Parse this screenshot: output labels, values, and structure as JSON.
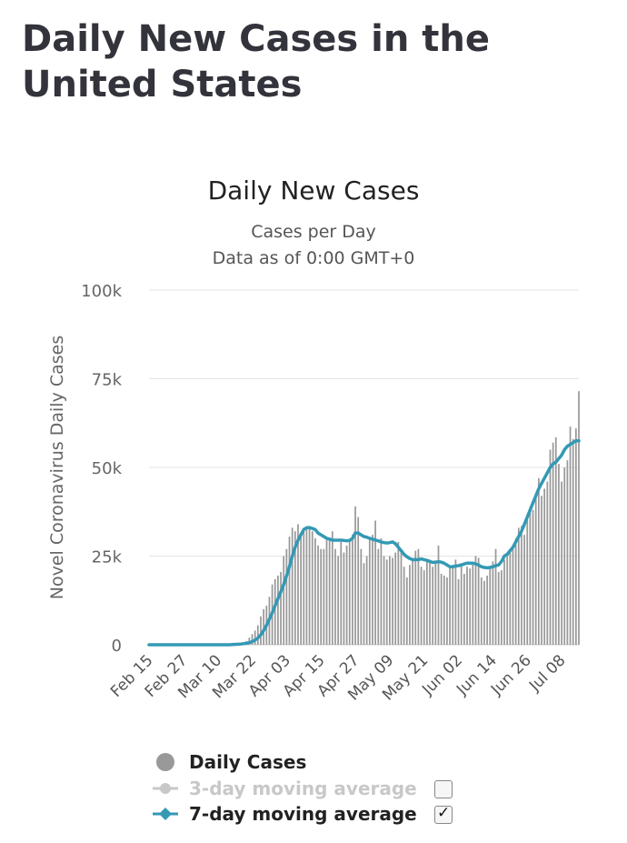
{
  "page": {
    "title": "Daily New Cases in the United States"
  },
  "chart_data": {
    "type": "bar",
    "title": "Daily New Cases",
    "subtitle": "Cases per Day",
    "note": "Data as of 0:00 GMT+0",
    "ylabel": "Novel Coronavirus Daily Cases",
    "xlabel": "",
    "ylim": [
      0,
      100000
    ],
    "y_ticks": [
      {
        "value": 0,
        "label": "0"
      },
      {
        "value": 25000,
        "label": "25k"
      },
      {
        "value": 50000,
        "label": "50k"
      },
      {
        "value": 75000,
        "label": "75k"
      },
      {
        "value": 100000,
        "label": "100k"
      }
    ],
    "x_ticks": [
      {
        "index": 0,
        "label": "Feb 15"
      },
      {
        "index": 12,
        "label": "Feb 27"
      },
      {
        "index": 24,
        "label": "Mar 10"
      },
      {
        "index": 36,
        "label": "Mar 22"
      },
      {
        "index": 48,
        "label": "Apr 03"
      },
      {
        "index": 60,
        "label": "Apr 15"
      },
      {
        "index": 72,
        "label": "Apr 27"
      },
      {
        "index": 84,
        "label": "May 09"
      },
      {
        "index": 96,
        "label": "May 21"
      },
      {
        "index": 108,
        "label": "Jun 02"
      },
      {
        "index": 120,
        "label": "Jun 14"
      },
      {
        "index": 132,
        "label": "Jun 26"
      },
      {
        "index": 144,
        "label": "Jul 08"
      }
    ],
    "grid": true,
    "legend_position": "bottom",
    "series": [
      {
        "name": "Daily Cases",
        "type": "bar",
        "color": "#999999",
        "visible": true,
        "values": [
          0,
          0,
          0,
          0,
          0,
          0,
          0,
          0,
          0,
          0,
          0,
          0,
          0,
          0,
          0,
          0,
          0,
          0,
          0,
          0,
          0,
          0,
          0,
          0,
          0,
          50,
          60,
          100,
          150,
          200,
          300,
          400,
          500,
          700,
          1000,
          2000,
          3000,
          4000,
          5500,
          8000,
          10000,
          11000,
          13500,
          17000,
          18500,
          19500,
          20500,
          25000,
          27000,
          30500,
          33000,
          32000,
          34000,
          31000,
          33000,
          32500,
          33500,
          32000,
          30000,
          28000,
          27000,
          27000,
          29500,
          30000,
          32000,
          27000,
          25000,
          29000,
          26000,
          28000,
          29000,
          31000,
          39000,
          36000,
          27000,
          23000,
          25000,
          30000,
          31000,
          35000,
          27000,
          30000,
          25000,
          24000,
          25000,
          24500,
          26000,
          29000,
          26000,
          22000,
          19000,
          22500,
          24000,
          26500,
          27000,
          22000,
          21000,
          23500,
          24000,
          22000,
          23000,
          28000,
          20000,
          19500,
          19000,
          22000,
          22500,
          24000,
          18500,
          23000,
          20000,
          22000,
          21500,
          23000,
          25000,
          24500,
          19000,
          18000,
          19500,
          22000,
          23500,
          27000,
          20500,
          21000,
          24000,
          25000,
          26000,
          28000,
          30000,
          33000,
          33500,
          31000,
          36000,
          39000,
          38000,
          42000,
          47000,
          42000,
          44000,
          46000,
          55000,
          57000,
          58500,
          51000,
          46000,
          50000,
          52000,
          61500,
          58000,
          61000,
          71500
        ]
      },
      {
        "name": "3-day moving average",
        "type": "line",
        "color": "#c8c8c8",
        "visible": false
      },
      {
        "name": "7-day moving average",
        "type": "line",
        "color": "#3399b5",
        "visible": true,
        "values": [
          0,
          0,
          0,
          0,
          0,
          0,
          0,
          0,
          0,
          0,
          0,
          0,
          0,
          0,
          0,
          0,
          0,
          0,
          0,
          0,
          0,
          0,
          0,
          0,
          0,
          0,
          0,
          0,
          0,
          50,
          100,
          150,
          200,
          300,
          400,
          600,
          900,
          1300,
          1900,
          2800,
          4000,
          5500,
          7200,
          9000,
          11000,
          13000,
          15000,
          17000,
          19500,
          22000,
          25000,
          27500,
          29500,
          31000,
          32500,
          33000,
          33000,
          32800,
          32500,
          31500,
          31000,
          30500,
          30000,
          29800,
          29500,
          29500,
          29500,
          29500,
          29400,
          29300,
          29400,
          30000,
          31500,
          31500,
          31000,
          30500,
          30300,
          30000,
          29800,
          29500,
          29300,
          29000,
          28800,
          28700,
          28800,
          29000,
          28500,
          27500,
          26500,
          25500,
          24800,
          24300,
          24000,
          24000,
          24000,
          24200,
          24000,
          23800,
          23500,
          23200,
          23300,
          23400,
          23300,
          23000,
          22500,
          22000,
          22000,
          22200,
          22300,
          22500,
          22800,
          23000,
          23000,
          23000,
          22800,
          22500,
          22000,
          21800,
          21700,
          21800,
          22000,
          22300,
          22500,
          23500,
          25000,
          25500,
          26500,
          27500,
          29000,
          30500,
          32000,
          34000,
          36000,
          38000,
          40000,
          42000,
          44000,
          45500,
          47000,
          48500,
          50000,
          51000,
          51500,
          52500,
          53500,
          55000,
          56000,
          56500,
          57000,
          57500,
          57500
        ]
      }
    ]
  },
  "legend": {
    "items": [
      {
        "label": "Daily Cases",
        "color": "#999999"
      },
      {
        "label": "3-day moving average",
        "color": "#c8c8c8",
        "checked": false
      },
      {
        "label": "7-day moving average",
        "color": "#3399b5",
        "checked": true,
        "check_glyph": "✓"
      }
    ]
  }
}
